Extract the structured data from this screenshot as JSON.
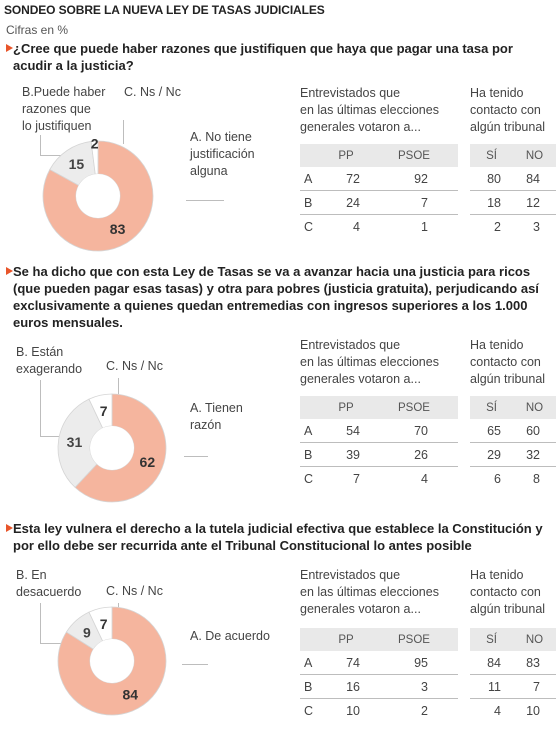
{
  "title": "SONDEO SOBRE LA NUEVA LEY DE TASAS JUDICIALES",
  "subtitle": "Cifras en %",
  "colors": {
    "accent": "#e8552a",
    "pie_a": "#f5b59e",
    "pie_b": "#ececec",
    "pie_c": "#ffffff",
    "pie_edge": "#d5d5d5"
  },
  "col_header_1": "Entrevistados que\nen las últimas elecciones\ngenerales votaron a...",
  "col_header_2": "Ha tenido\ncontacto con\nalgún tribunal",
  "sub_headers": {
    "pp": "PP",
    "psoe": "PSOE",
    "si": "SÍ",
    "no": "NO"
  },
  "chart_data": [
    {
      "type": "pie",
      "question": "¿Cree que puede haber razones que justifiquen que haya que pagar una tasa por acudir a la justicia?",
      "slices": [
        {
          "key": "A",
          "label": "A. No tiene\njustificación\nalguna",
          "value": 83
        },
        {
          "key": "B",
          "label": "B.Puede haber\nrazones que\nlo justifiquen",
          "value": 15
        },
        {
          "key": "C",
          "label": "C. Ns / Nc",
          "value": 2
        }
      ],
      "table": {
        "rows": [
          "A",
          "B",
          "C"
        ],
        "PP": [
          72,
          24,
          4
        ],
        "PSOE": [
          92,
          7,
          1
        ],
        "SI": [
          80,
          18,
          2
        ],
        "NO": [
          84,
          12,
          3
        ]
      }
    },
    {
      "type": "pie",
      "question": "Se ha dicho que con esta Ley de Tasas se va a avanzar hacia una justicia para ricos (que pueden pagar esas tasas) y otra para pobres (justicia gratuita), perjudicando así exclusivamente a quienes quedan entremedias con ingresos superiores a los 1.000 euros mensuales.",
      "slices": [
        {
          "key": "A",
          "label": "A. Tienen\nrazón",
          "value": 62
        },
        {
          "key": "B",
          "label": "B. Están\nexagerando",
          "value": 31
        },
        {
          "key": "C",
          "label": "C. Ns / Nc",
          "value": 7
        }
      ],
      "table": {
        "rows": [
          "A",
          "B",
          "C"
        ],
        "PP": [
          54,
          39,
          7
        ],
        "PSOE": [
          70,
          26,
          4
        ],
        "SI": [
          65,
          29,
          6
        ],
        "NO": [
          60,
          32,
          8
        ]
      }
    },
    {
      "type": "pie",
      "question": "Esta ley vulnera el derecho a la tutela judicial efectiva que establece la Constitución y por ello debe ser recurrida ante el Tribunal Constitucional lo antes posible",
      "slices": [
        {
          "key": "A",
          "label": "A. De acuerdo",
          "value": 84
        },
        {
          "key": "B",
          "label": "B. En\ndesacuerdo",
          "value": 9
        },
        {
          "key": "C",
          "label": "C. Ns / Nc",
          "value": 7
        }
      ],
      "table": {
        "rows": [
          "A",
          "B",
          "C"
        ],
        "PP": [
          74,
          16,
          10
        ],
        "PSOE": [
          95,
          3,
          2
        ],
        "SI": [
          84,
          11,
          4
        ],
        "NO": [
          83,
          7,
          10
        ]
      }
    }
  ]
}
